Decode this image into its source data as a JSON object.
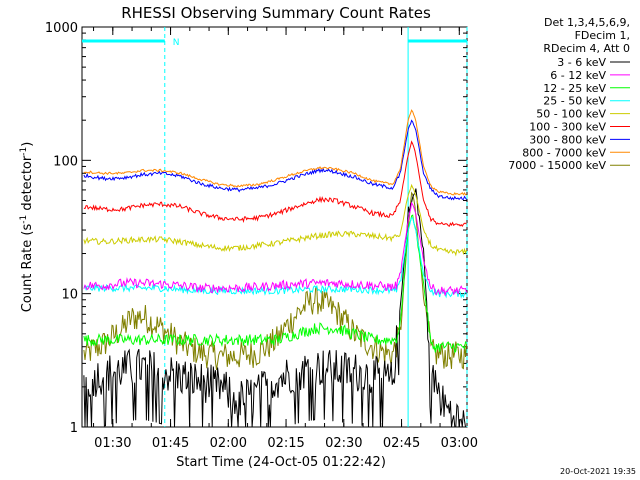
{
  "chart_data": {
    "type": "line",
    "title": "RHESSI Observing Summary Count Rates",
    "xlabel": "Start Time (24-Oct-05 01:22:42)",
    "ylabel": "Count Rate (s",
    "ylabel_sup1": "-1",
    "ylabel_mid": " detector",
    "ylabel_sup2": "-1",
    "ylabel_end": ")",
    "y_scale": "log",
    "ylim": [
      1,
      1000
    ],
    "y_ticks": [
      {
        "value": 1,
        "label": "1"
      },
      {
        "value": 10,
        "label": "10"
      },
      {
        "value": 100,
        "label": "100"
      },
      {
        "value": 1000,
        "label": "1000"
      }
    ],
    "xlim_minutes_after_start": [
      -0.7,
      99.3
    ],
    "x_ticks": [
      {
        "t": 7.3,
        "label": "01:30"
      },
      {
        "t": 22.3,
        "label": "01:45"
      },
      {
        "t": 37.3,
        "label": "02:00"
      },
      {
        "t": 52.3,
        "label": "02:15"
      },
      {
        "t": 67.3,
        "label": "02:30"
      },
      {
        "t": 82.3,
        "label": "02:45"
      },
      {
        "t": 97.3,
        "label": "03:00"
      }
    ],
    "legend_header": [
      "Det 1,3,4,5,6,9,",
      "FDecim 1,",
      "RDecim 4, Att 0"
    ],
    "legend_placement": "right",
    "series": [
      {
        "name": "3 - 6 keV",
        "color": "#000000",
        "t": [
          0,
          5,
          10,
          15,
          20,
          25,
          30,
          35,
          40,
          45,
          50,
          55,
          60,
          62,
          65,
          70,
          75,
          78,
          80,
          82,
          84,
          86,
          88,
          90,
          93,
          96,
          99
        ],
        "v": [
          2.2,
          2.5,
          2.7,
          2.8,
          2.6,
          2.4,
          2.2,
          2.0,
          1.6,
          1.8,
          2.3,
          2.6,
          2.8,
          2.8,
          2.7,
          2.6,
          2.4,
          2.3,
          2.2,
          8,
          40,
          60,
          20,
          2.5,
          1.5,
          1.2,
          1.0
        ]
      },
      {
        "name": "6 - 12 keV",
        "color": "#ff00ff",
        "t": [
          0,
          5,
          10,
          15,
          20,
          25,
          30,
          35,
          40,
          45,
          50,
          55,
          60,
          65,
          70,
          75,
          80,
          81,
          82,
          84,
          85,
          86,
          88,
          90,
          92,
          95,
          99
        ],
        "v": [
          11.5,
          11.5,
          12,
          12,
          11.8,
          11.5,
          11,
          11,
          11,
          11.2,
          11.5,
          11.8,
          12,
          12,
          11.8,
          11.5,
          11.2,
          11.5,
          14,
          35,
          48,
          40,
          18,
          11,
          10.5,
          10.5,
          10.5
        ]
      },
      {
        "name": "12 - 25 keV",
        "color": "#00ff00",
        "t": [
          0,
          10,
          20,
          30,
          40,
          50,
          55,
          60,
          65,
          70,
          75,
          80,
          81,
          82,
          84,
          85,
          86,
          88,
          90,
          95,
          99
        ],
        "v": [
          4.5,
          4.5,
          4.5,
          4.5,
          4.5,
          4.5,
          5,
          5.5,
          5.5,
          5,
          4.5,
          4.5,
          4.6,
          6,
          30,
          40,
          30,
          12,
          4,
          4,
          4
        ]
      },
      {
        "name": "25 - 50 keV",
        "color": "#00ffff",
        "t": [
          0,
          10,
          20,
          30,
          40,
          50,
          60,
          70,
          80,
          81,
          82,
          84,
          85,
          86,
          88,
          90,
          92,
          95,
          99
        ],
        "v": [
          11,
          11,
          11,
          10.5,
          10.5,
          10.5,
          10.8,
          10.8,
          10.5,
          10.5,
          12,
          30,
          38,
          30,
          14,
          10.5,
          10,
          10,
          10
        ]
      },
      {
        "name": "50 - 100 keV",
        "color": "#cccc00",
        "t": [
          0,
          5,
          10,
          15,
          20,
          25,
          30,
          35,
          40,
          45,
          50,
          55,
          60,
          65,
          70,
          75,
          80,
          82,
          84,
          85,
          86,
          88,
          90,
          92,
          95,
          99
        ],
        "v": [
          25,
          24.5,
          25,
          25.5,
          25.5,
          24.5,
          23,
          22,
          22,
          23,
          24,
          25.5,
          27,
          28,
          28,
          27,
          26,
          28,
          55,
          65,
          55,
          30,
          23,
          21,
          20.5,
          20.5
        ]
      },
      {
        "name": "100 - 300 keV",
        "color": "#ff0000",
        "t": [
          0,
          5,
          10,
          15,
          20,
          25,
          30,
          35,
          40,
          45,
          50,
          55,
          60,
          62,
          65,
          70,
          75,
          80,
          82,
          84,
          85,
          86,
          88,
          90,
          92,
          95,
          99
        ],
        "v": [
          45,
          43,
          43,
          46,
          47,
          45,
          40,
          37,
          36,
          37,
          40,
          45,
          50,
          51,
          50,
          45,
          40,
          38,
          50,
          110,
          140,
          110,
          50,
          36,
          33,
          33,
          33
        ]
      },
      {
        "name": "300 - 800 keV",
        "color": "#0000ff",
        "t": [
          0,
          5,
          10,
          15,
          20,
          25,
          30,
          35,
          40,
          45,
          50,
          55,
          60,
          62,
          65,
          70,
          75,
          80,
          82,
          84,
          85,
          86,
          88,
          90,
          92,
          95,
          99
        ],
        "v": [
          77,
          73,
          74,
          78,
          80,
          76,
          67,
          62,
          60,
          62,
          67,
          75,
          83,
          85,
          82,
          75,
          66,
          62,
          80,
          170,
          200,
          170,
          80,
          60,
          54,
          52,
          52
        ]
      },
      {
        "name": "800 - 7000 keV",
        "color": "#ff8800",
        "t": [
          0,
          5,
          10,
          15,
          20,
          25,
          30,
          35,
          40,
          45,
          50,
          55,
          60,
          62,
          65,
          70,
          75,
          80,
          82,
          84,
          85,
          86,
          88,
          90,
          92,
          95,
          99
        ],
        "v": [
          82,
          80,
          80,
          84,
          84,
          80,
          72,
          66,
          64,
          66,
          72,
          80,
          87,
          88,
          86,
          80,
          70,
          66,
          86,
          200,
          240,
          200,
          90,
          64,
          58,
          56,
          56
        ]
      },
      {
        "name": "7000 - 15000 keV",
        "color": "#808000",
        "t": [
          0,
          5,
          10,
          12,
          15,
          20,
          25,
          30,
          35,
          40,
          45,
          50,
          52,
          55,
          58,
          60,
          62,
          65,
          68,
          70,
          75,
          78,
          80,
          82,
          84,
          85,
          86,
          88,
          90,
          95,
          99
        ],
        "v": [
          3.5,
          4.2,
          5.5,
          6.5,
          6.8,
          5.5,
          4.2,
          3.6,
          3.4,
          3.4,
          3.6,
          4.5,
          5.5,
          7,
          8.5,
          9,
          8.5,
          7.5,
          6,
          5,
          4,
          3.6,
          3.5,
          5,
          30,
          60,
          40,
          10,
          3.6,
          3.4,
          3.5
        ]
      }
    ],
    "annotations": {
      "night_bar_1": {
        "from": -0.7,
        "to": 20.8,
        "label": "N"
      },
      "night_bar_2": {
        "from": 84.0,
        "to": 99.3
      },
      "dashed_markers": [
        20.8,
        99.3
      ],
      "solid_markers": [
        84.0
      ]
    },
    "timestamp": "20-Oct-2021 19:35"
  }
}
